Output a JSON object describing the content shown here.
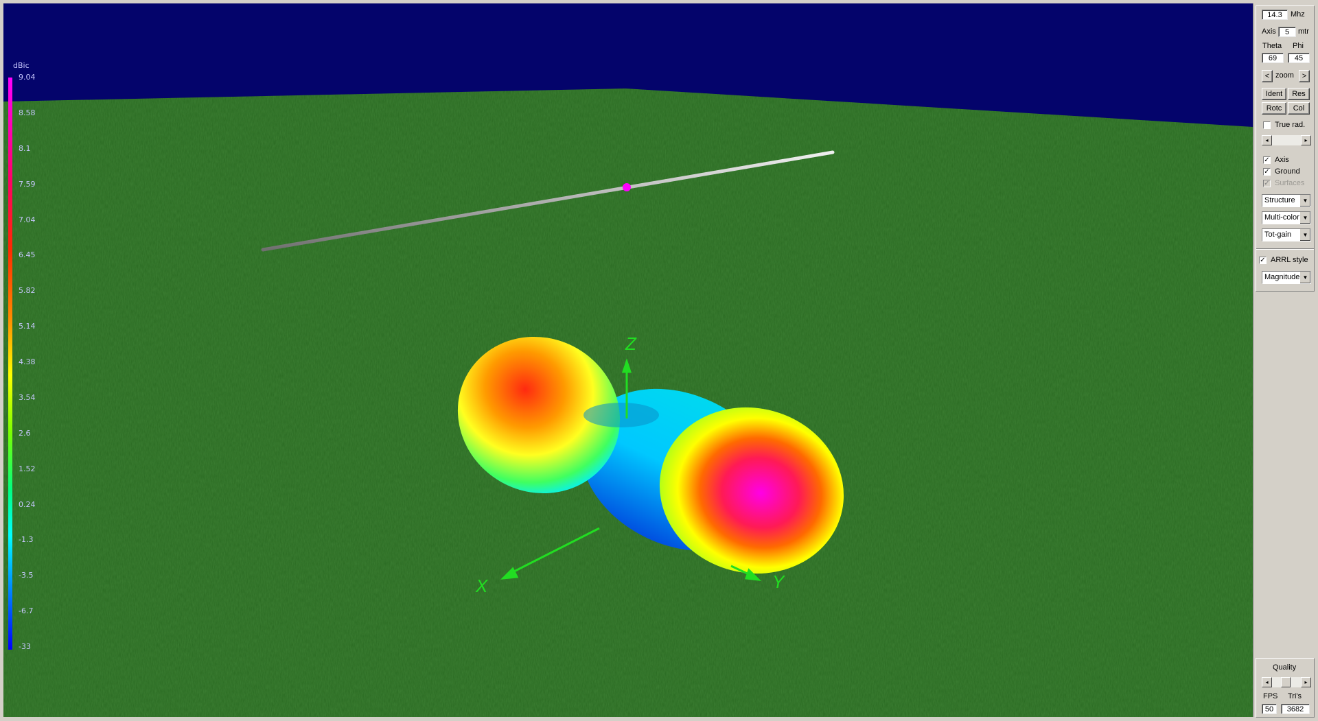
{
  "legend": {
    "unit": "dBic",
    "ticks": [
      "9.04",
      "8.58",
      "8.1",
      "7.59",
      "7.04",
      "6.45",
      "5.82",
      "5.14",
      "4.38",
      "3.54",
      "2.6",
      "1.52",
      "0.24",
      "-1.3",
      "-3.5",
      "-6.7",
      "-33"
    ]
  },
  "axes": {
    "x": "X",
    "y": "Y",
    "z": "Z"
  },
  "panel": {
    "frequency": {
      "value": "14.3",
      "unit": "Mhz"
    },
    "axis": {
      "label": "Axis",
      "value": "5",
      "unit": "mtr"
    },
    "theta": {
      "label": "Theta",
      "value": "69"
    },
    "phi": {
      "label": "Phi",
      "value": "45"
    },
    "zoom": {
      "label": "zoom",
      "left": "<",
      "right": ">"
    },
    "buttons": {
      "ident": "Ident",
      "res": "Res",
      "rotc": "Rotc",
      "col": "Col"
    },
    "true_rad": {
      "label": "True rad.",
      "checked": false
    },
    "checks": [
      {
        "label": "Axis",
        "checked": true,
        "enabled": true
      },
      {
        "label": "Ground",
        "checked": true,
        "enabled": true
      },
      {
        "label": "Surfaces",
        "checked": true,
        "enabled": false
      }
    ],
    "selects": [
      "Structure",
      "Multi-color",
      "Tot-gain"
    ],
    "arrl": {
      "label": "ARRL style",
      "checked": true,
      "select": "Magnitude"
    },
    "quality": {
      "label": "Quality",
      "fps_label": "FPS",
      "tris_label": "Tri's",
      "fps": "50",
      "tris": "3682"
    }
  },
  "colors": {
    "sky": "#04046b",
    "ground": "#2a6a22",
    "axis": "#22dd22",
    "feed": "#ff00ff",
    "panel": "#d4d0c8"
  }
}
